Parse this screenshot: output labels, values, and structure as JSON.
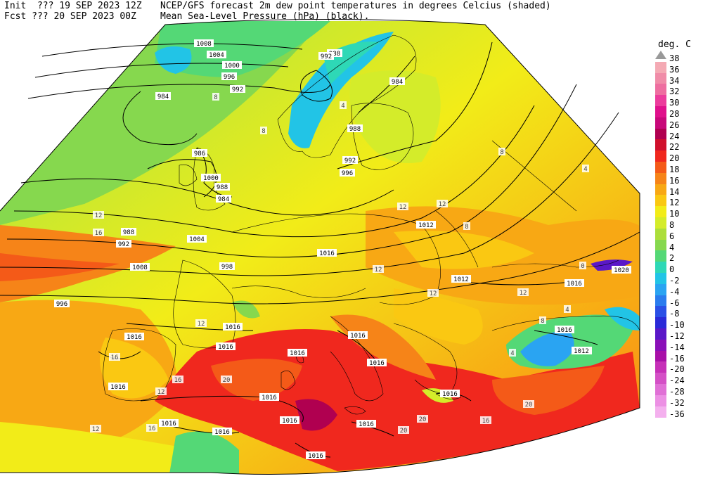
{
  "header": {
    "init_line": "Init  ??? 19 SEP 2023 12Z",
    "fcst_line": "Fcst ??? 20 SEP 2023 00Z",
    "title_line1": "NCEP/GFS forecast 2m dew point temperatures in degrees Celcius (shaded)",
    "title_line2": "Mean Sea-Level Pressure (hPa) (black)."
  },
  "legend": {
    "unit": "deg. C",
    "levels": [
      "38",
      "36",
      "34",
      "32",
      "30",
      "28",
      "26",
      "24",
      "22",
      "20",
      "18",
      "16",
      "14",
      "12",
      "10",
      "8",
      "6",
      "4",
      "2",
      "0",
      "-2",
      "-4",
      "-6",
      "-8",
      "-10",
      "-12",
      "-14",
      "-16",
      "-20",
      "-24",
      "-28",
      "-32",
      "-36"
    ],
    "colors": [
      "#999999",
      "#f4aab4",
      "#f08ca8",
      "#ee6ea0",
      "#ec3c9c",
      "#e0108c",
      "#c8087a",
      "#b00050",
      "#d0102c",
      "#f0281e",
      "#f45a18",
      "#f68418",
      "#f8a814",
      "#fac812",
      "#f2ec18",
      "#d4ec2a",
      "#acde3a",
      "#86d84e",
      "#54d876",
      "#2ed8b6",
      "#22c4e6",
      "#2aa4f2",
      "#2a7cee",
      "#2a50e6",
      "#2a2ad8",
      "#5a18c8",
      "#8a10b8",
      "#a810a8",
      "#c630b8",
      "#d450c6",
      "#e070d6",
      "#ec90e4",
      "#f4b0ee"
    ]
  },
  "isobar_labels": [
    "1008",
    "1004",
    "1000",
    "996",
    "992",
    "988",
    "984",
    "986",
    "988",
    "984",
    "988",
    "992",
    "996",
    "998",
    "996",
    "992",
    "984",
    "988",
    "992",
    "996",
    "1000",
    "1004",
    "1008",
    "1012",
    "1016",
    "1012",
    "1016",
    "1016",
    "1016",
    "1016",
    "1016",
    "1016",
    "1016",
    "1016",
    "1016",
    "1016",
    "1016",
    "1016",
    "1016",
    "1016",
    "1016",
    "1016",
    "1016",
    "1020",
    "1012"
  ],
  "temperature_labels": [
    "12",
    "16",
    "8",
    "8",
    "4",
    "8",
    "12",
    "12",
    "12",
    "12",
    "12",
    "16",
    "16",
    "20",
    "20",
    "20",
    "20",
    "16",
    "12",
    "12",
    "16",
    "12",
    "8",
    "4",
    "0",
    "4",
    "8",
    "4"
  ]
}
